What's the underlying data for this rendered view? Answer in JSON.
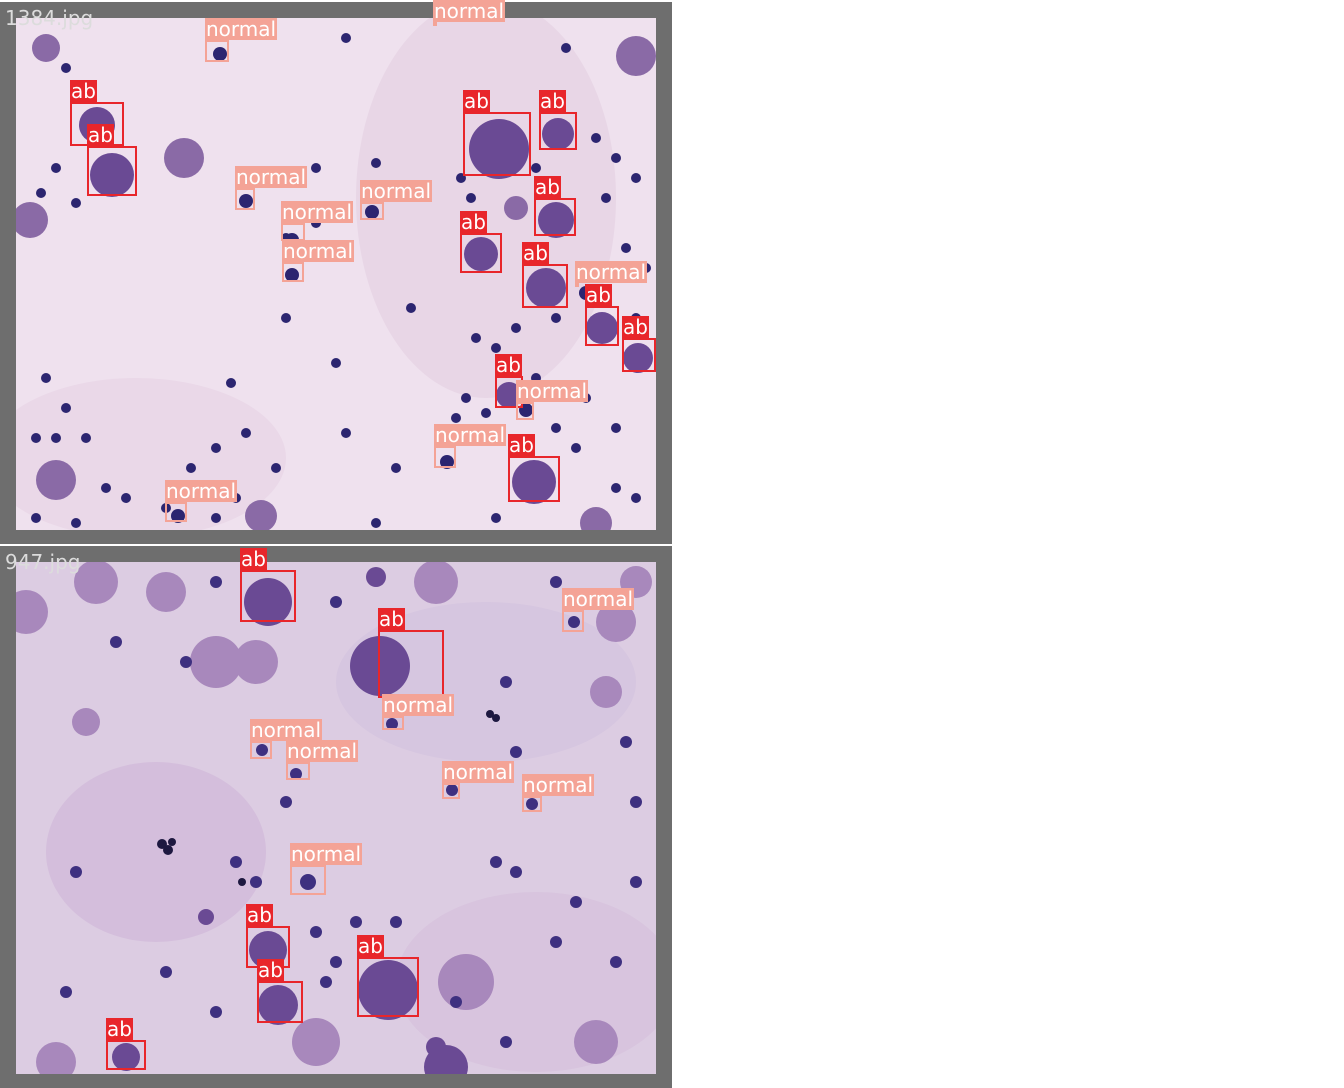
{
  "colors": {
    "ab": "#e8262b",
    "normal": "#f4a396",
    "frame": "#6e6e6e"
  },
  "images": [
    {
      "filename": "1384.jpg",
      "detections": [
        {
          "label": "normal"
        },
        {
          "label": "normal"
        },
        {
          "label": "ab"
        },
        {
          "label": "ab"
        },
        {
          "label": "normal"
        },
        {
          "label": "normal"
        },
        {
          "label": "normal"
        },
        {
          "label": "normal"
        },
        {
          "label": "ab"
        },
        {
          "label": "ab"
        },
        {
          "label": "ab"
        },
        {
          "label": "ab"
        },
        {
          "label": "ab"
        },
        {
          "label": "normal"
        },
        {
          "label": "ab"
        },
        {
          "label": "ab"
        },
        {
          "label": "ab"
        },
        {
          "label": "normal"
        },
        {
          "label": "normal"
        },
        {
          "label": "ab"
        },
        {
          "label": "normal"
        }
      ]
    },
    {
      "filename": "947.jpg",
      "detections": [
        {
          "label": "ab"
        },
        {
          "label": "normal"
        },
        {
          "label": "ab"
        },
        {
          "label": "normal"
        },
        {
          "label": "normal"
        },
        {
          "label": "normal"
        },
        {
          "label": "normal"
        },
        {
          "label": "normal"
        },
        {
          "label": "normal"
        },
        {
          "label": "ab"
        },
        {
          "label": "ab"
        },
        {
          "label": "ab"
        },
        {
          "label": "ab"
        }
      ]
    }
  ]
}
